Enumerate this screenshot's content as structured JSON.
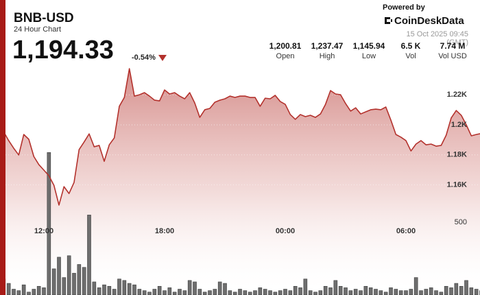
{
  "header": {
    "symbol": "BNB-USD",
    "subtitle": "24 Hour Chart",
    "price": "1,194.33",
    "change": "-0.54%",
    "powered_by": "Powered by",
    "brand": "CoinDeskData",
    "timestamp": "15 Oct 2025 09:45 (GMT)"
  },
  "stats": [
    {
      "value": "1,200.81",
      "label": "Open"
    },
    {
      "value": "1,237.47",
      "label": "High"
    },
    {
      "value": "1,145.94",
      "label": "Low"
    },
    {
      "value": "6.5 K",
      "label": "Vol"
    },
    {
      "value": "7.74 M",
      "label": "Vol USD"
    }
  ],
  "chart_data": {
    "type": "line",
    "categories": [
      null,
      null,
      null,
      null,
      null,
      null,
      null,
      null,
      null,
      "12:00",
      null,
      null,
      null,
      null,
      null,
      null,
      null,
      null,
      null,
      null,
      null,
      null,
      null,
      null,
      null,
      null,
      null,
      null,
      null,
      null,
      null,
      null,
      null,
      "18:00",
      null,
      null,
      null,
      null,
      null,
      null,
      null,
      null,
      null,
      null,
      null,
      null,
      null,
      null,
      null,
      null,
      null,
      null,
      null,
      null,
      null,
      null,
      null,
      "00:00",
      null,
      null,
      null,
      null,
      null,
      null,
      null,
      null,
      null,
      null,
      null,
      null,
      null,
      null,
      null,
      null,
      null,
      null,
      null,
      null,
      null,
      null,
      null,
      "06:00",
      null,
      null,
      null,
      null,
      null,
      null,
      null,
      null,
      null,
      null,
      null,
      null,
      null,
      null,
      null
    ],
    "series": [
      {
        "name": "Price",
        "color": "#b3312c",
        "values": [
          1194.0,
          1195.4,
          1189.5,
          1184.4,
          1179.9,
          1193.6,
          1190.4,
          1178.9,
          1173.5,
          1169.8,
          1166.1,
          1159.7,
          1146.5,
          1158.8,
          1154.2,
          1161.6,
          1183.5,
          1188.6,
          1194.0,
          1185.4,
          1186.3,
          1175.7,
          1186.7,
          1191.3,
          1212.4,
          1218.3,
          1237.5,
          1219.2,
          1220.1,
          1221.5,
          1219.2,
          1216.5,
          1216.0,
          1223.3,
          1220.6,
          1221.5,
          1219.2,
          1217.4,
          1221.5,
          1214.6,
          1205.0,
          1210.1,
          1211.0,
          1215.1,
          1216.5,
          1217.4,
          1219.2,
          1218.3,
          1219.2,
          1219.2,
          1218.3,
          1218.3,
          1212.4,
          1217.8,
          1217.4,
          1219.7,
          1215.6,
          1213.7,
          1206.9,
          1203.7,
          1206.9,
          1205.5,
          1206.4,
          1205.0,
          1207.3,
          1213.7,
          1222.9,
          1220.6,
          1220.1,
          1214.2,
          1209.2,
          1211.4,
          1207.3,
          1208.7,
          1210.1,
          1210.5,
          1210.1,
          1211.9,
          1203.2,
          1193.6,
          1191.8,
          1189.5,
          1182.6,
          1187.2,
          1189.5,
          1186.7,
          1187.2,
          1185.8,
          1186.3,
          1193.1,
          1204.6,
          1209.6,
          1206.4,
          1200.0,
          1192.7,
          1193.6,
          1194.3
        ]
      },
      {
        "name": "Volume",
        "type": "bar",
        "axis": "y2",
        "color": "#6e6e6e",
        "values": [
          60,
          110,
          80,
          40,
          30,
          70,
          20,
          40,
          60,
          50,
          980,
          180,
          260,
          120,
          270,
          150,
          210,
          190,
          550,
          90,
          50,
          70,
          60,
          40,
          110,
          100,
          80,
          70,
          40,
          30,
          20,
          40,
          60,
          30,
          50,
          20,
          40,
          30,
          100,
          90,
          40,
          20,
          30,
          40,
          90,
          80,
          30,
          20,
          40,
          30,
          20,
          30,
          50,
          40,
          30,
          20,
          30,
          40,
          30,
          60,
          50,
          110,
          30,
          20,
          30,
          60,
          50,
          100,
          60,
          50,
          30,
          40,
          30,
          60,
          50,
          40,
          30,
          20,
          50,
          40,
          30,
          30,
          40,
          120,
          30,
          40,
          50,
          30,
          20,
          60,
          50,
          80,
          60,
          100,
          50,
          40,
          30
        ]
      }
    ],
    "ylim": [
      1090,
      1280
    ],
    "yticks": [
      {
        "value": 1160,
        "label": "1.16K"
      },
      {
        "value": 1180,
        "label": "1.18K"
      },
      {
        "value": 1200,
        "label": "1.2K"
      },
      {
        "value": 1220,
        "label": "1.22K"
      }
    ],
    "y2lim": [
      0,
      2000
    ],
    "y2ticks": [
      500
    ],
    "grid": true
  }
}
